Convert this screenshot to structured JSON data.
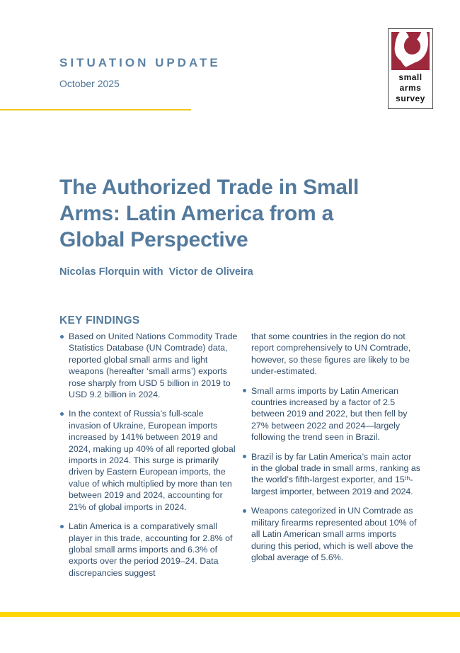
{
  "page": {
    "kicker": "SITUATION UPDATE",
    "date": "October 2025",
    "title_lines": [
      "The Authorized Trade in Small",
      "Arms: Latin America from a",
      "Global Perspective"
    ],
    "authors": "Nicolas Florquin with  Victor de Oliveira"
  },
  "logo": {
    "name": "small arms survey",
    "lines": [
      "small",
      "arms",
      "survey"
    ]
  },
  "key_findings": {
    "heading": "KEY FINDINGS",
    "left_column": [
      {
        "bullet": true,
        "text": "Based on United Nations Commodity Trade Statistics Database (UN Comtrade) data, reported global small arms and light weapons (hereafter ‘small arms’) exports rose sharply from USD 5 billion in 2019 to USD 9.2 billion in 2024."
      },
      {
        "bullet": true,
        "text": "In the context of Russia’s full-scale invasion of Ukraine, European imports increased by 141% between 2019 and 2024, making up 40% of all reported global imports in 2024. This surge is primarily driven by Eastern European imports, the value of which multiplied by more than ten between 2019 and 2024, accounting for 21% of global imports in 2024."
      },
      {
        "bullet": true,
        "text": "Latin America is a comparatively small player in this trade, accounting for 2.8% of global small arms imports and 6.3% of exports over the period 2019–24. Data discrepancies suggest"
      }
    ],
    "right_column": [
      {
        "bullet": false,
        "text": "that some countries in the region do not report comprehensively to UN Comtrade, however, so these figures are likely to be under-estimated."
      },
      {
        "bullet": true,
        "text": "Small arms imports by Latin American countries increased by a factor of 2.5 between 2019 and 2022, but then fell by 27% between 2022 and 2024—largely following the trend seen in Brazil."
      },
      {
        "bullet": true,
        "text": "Brazil is by far Latin America’s main actor in the global trade in small arms, ranking as the world’s fifth-largest exporter, and 15ᵗʰ-largest importer, between 2019 and 2024."
      },
      {
        "bullet": true,
        "text": "Weapons categorized in UN Comtrade as military firearms represented about 10% of all Latin American small arms imports during this period, which is well above the global average of 5.6%."
      }
    ]
  },
  "colors": {
    "heading_blue": "#537a9c",
    "kicker_blue": "#5b82a4",
    "date_blue": "#4c7495",
    "body_text": "#2f4d6a",
    "bullet_dot": "#4a7aa6",
    "yellow_top_line": "#f0c81e",
    "yellow_bottom_bar": "#ffd608",
    "logo_red": "#9d2a3c"
  }
}
